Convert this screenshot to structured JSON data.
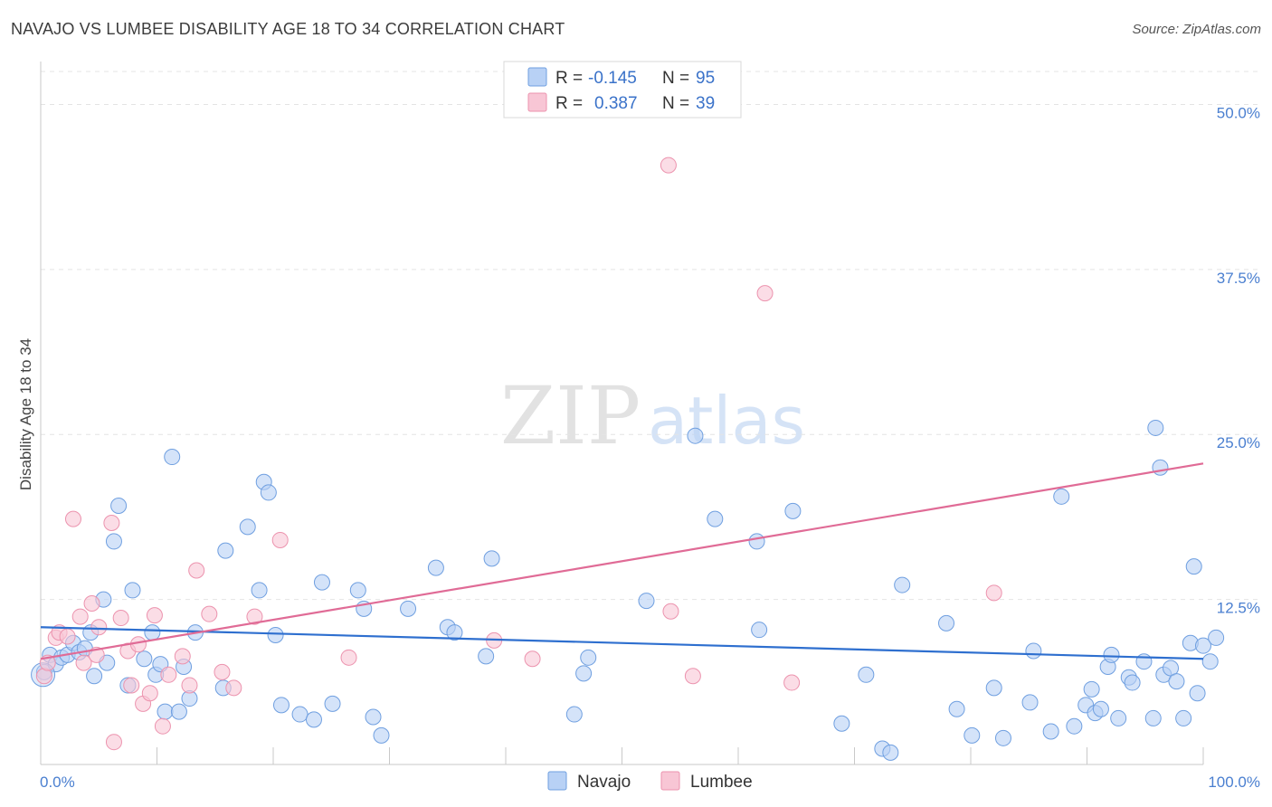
{
  "title": "NAVAJO VS LUMBEE DISABILITY AGE 18 TO 34 CORRELATION CHART",
  "source": "Source: ZipAtlas.com",
  "watermark": {
    "zip": "ZIP",
    "atlas": "atlas"
  },
  "colors": {
    "navajo_fill": "#b8d1f5",
    "navajo_stroke": "#6f9fe0",
    "navajo_line": "#2e6fcf",
    "lumbee_fill": "#f8c6d5",
    "lumbee_stroke": "#ec93ae",
    "lumbee_line": "#e06b96",
    "axis_label": "#4a7fd0"
  },
  "legend": {
    "r_label": "R =",
    "n_label": "N =",
    "series": [
      {
        "name": "Navajo",
        "r": "-0.145",
        "n": "95"
      },
      {
        "name": "Lumbee",
        "r": "0.387",
        "n": "39"
      }
    ]
  },
  "chart_data": {
    "type": "scatter",
    "title": "NAVAJO VS LUMBEE DISABILITY AGE 18 TO 34 CORRELATION CHART",
    "xlabel": "",
    "ylabel": "Disability Age 18 to 34",
    "xlim": [
      0,
      100
    ],
    "ylim": [
      0,
      52.5
    ],
    "x_tick_labels": [
      "0.0%",
      "100.0%"
    ],
    "y_ticks": [
      12.5,
      25.0,
      37.5,
      50.0
    ],
    "y_tick_labels": [
      "12.5%",
      "25.0%",
      "37.5%",
      "50.0%"
    ],
    "grid": true,
    "series": [
      {
        "name": "Navajo",
        "trend": {
          "x": [
            0,
            100
          ],
          "y": [
            10.4,
            8.0
          ]
        },
        "points": [
          [
            0.3,
            7.0
          ],
          [
            0.8,
            8.3
          ],
          [
            1.3,
            7.6
          ],
          [
            1.8,
            8.1
          ],
          [
            2.3,
            8.3
          ],
          [
            2.8,
            9.2
          ],
          [
            3.3,
            8.5
          ],
          [
            3.8,
            8.8
          ],
          [
            4.3,
            10.0
          ],
          [
            4.6,
            6.7
          ],
          [
            5.4,
            12.5
          ],
          [
            5.7,
            7.7
          ],
          [
            6.3,
            16.9
          ],
          [
            6.7,
            19.6
          ],
          [
            7.5,
            6.0
          ],
          [
            7.9,
            13.2
          ],
          [
            8.9,
            8.0
          ],
          [
            9.6,
            10.0
          ],
          [
            9.9,
            6.8
          ],
          [
            10.3,
            7.6
          ],
          [
            10.7,
            4.0
          ],
          [
            11.3,
            23.3
          ],
          [
            11.9,
            4.0
          ],
          [
            12.3,
            7.4
          ],
          [
            12.8,
            5.0
          ],
          [
            13.3,
            10.0
          ],
          [
            15.7,
            5.8
          ],
          [
            15.9,
            16.2
          ],
          [
            17.8,
            18.0
          ],
          [
            18.8,
            13.2
          ],
          [
            19.2,
            21.4
          ],
          [
            19.6,
            20.6
          ],
          [
            20.2,
            9.8
          ],
          [
            20.7,
            4.5
          ],
          [
            22.3,
            3.8
          ],
          [
            23.5,
            3.4
          ],
          [
            24.2,
            13.8
          ],
          [
            25.1,
            4.6
          ],
          [
            27.3,
            13.2
          ],
          [
            27.8,
            11.8
          ],
          [
            28.6,
            3.6
          ],
          [
            29.3,
            2.2
          ],
          [
            31.6,
            11.8
          ],
          [
            34.0,
            14.9
          ],
          [
            35.0,
            10.4
          ],
          [
            35.6,
            10.0
          ],
          [
            38.3,
            8.2
          ],
          [
            38.8,
            15.6
          ],
          [
            45.9,
            3.8
          ],
          [
            46.7,
            6.9
          ],
          [
            47.1,
            8.1
          ],
          [
            52.1,
            12.4
          ],
          [
            56.3,
            24.9
          ],
          [
            58.0,
            18.6
          ],
          [
            61.6,
            16.9
          ],
          [
            61.8,
            10.2
          ],
          [
            64.7,
            19.2
          ],
          [
            68.9,
            3.1
          ],
          [
            71.0,
            6.8
          ],
          [
            72.4,
            1.2
          ],
          [
            73.1,
            0.9
          ],
          [
            74.1,
            13.6
          ],
          [
            77.9,
            10.7
          ],
          [
            78.8,
            4.2
          ],
          [
            80.1,
            2.2
          ],
          [
            82.0,
            5.8
          ],
          [
            82.8,
            2.0
          ],
          [
            85.1,
            4.7
          ],
          [
            85.4,
            8.6
          ],
          [
            86.9,
            2.5
          ],
          [
            87.8,
            20.3
          ],
          [
            88.9,
            2.9
          ],
          [
            89.9,
            4.5
          ],
          [
            90.4,
            5.7
          ],
          [
            90.7,
            3.9
          ],
          [
            91.2,
            4.2
          ],
          [
            91.8,
            7.4
          ],
          [
            92.1,
            8.3
          ],
          [
            92.7,
            3.5
          ],
          [
            93.6,
            6.6
          ],
          [
            93.9,
            6.2
          ],
          [
            94.9,
            7.8
          ],
          [
            95.7,
            3.5
          ],
          [
            95.9,
            25.5
          ],
          [
            96.3,
            22.5
          ],
          [
            96.6,
            6.8
          ],
          [
            97.2,
            7.3
          ],
          [
            97.7,
            6.3
          ],
          [
            98.3,
            3.5
          ],
          [
            98.9,
            9.2
          ],
          [
            99.2,
            15.0
          ],
          [
            99.5,
            5.4
          ],
          [
            100.0,
            9.0
          ],
          [
            100.6,
            7.8
          ],
          [
            101.1,
            9.6
          ]
        ]
      },
      {
        "name": "Lumbee",
        "trend": {
          "x": [
            0,
            100
          ],
          "y": [
            8.0,
            22.8
          ]
        },
        "points": [
          [
            0.3,
            6.7
          ],
          [
            0.6,
            7.7
          ],
          [
            1.3,
            9.6
          ],
          [
            1.6,
            10.0
          ],
          [
            2.3,
            9.7
          ],
          [
            2.8,
            18.6
          ],
          [
            3.4,
            11.2
          ],
          [
            3.7,
            7.7
          ],
          [
            4.4,
            12.2
          ],
          [
            4.8,
            8.3
          ],
          [
            5.0,
            10.4
          ],
          [
            6.1,
            18.3
          ],
          [
            6.3,
            1.7
          ],
          [
            6.9,
            11.1
          ],
          [
            7.5,
            8.6
          ],
          [
            7.8,
            6.0
          ],
          [
            8.4,
            9.1
          ],
          [
            8.8,
            4.6
          ],
          [
            9.4,
            5.4
          ],
          [
            9.8,
            11.3
          ],
          [
            10.5,
            2.9
          ],
          [
            11.0,
            6.8
          ],
          [
            12.2,
            8.2
          ],
          [
            12.8,
            6.0
          ],
          [
            13.4,
            14.7
          ],
          [
            14.5,
            11.4
          ],
          [
            15.6,
            7.0
          ],
          [
            16.6,
            5.8
          ],
          [
            18.4,
            11.2
          ],
          [
            20.6,
            17.0
          ],
          [
            26.5,
            8.1
          ],
          [
            39.0,
            9.4
          ],
          [
            42.3,
            8.0
          ],
          [
            54.0,
            45.4
          ],
          [
            54.2,
            11.6
          ],
          [
            56.1,
            6.7
          ],
          [
            62.3,
            35.7
          ],
          [
            64.6,
            6.2
          ],
          [
            82.0,
            13.0
          ]
        ]
      }
    ]
  }
}
